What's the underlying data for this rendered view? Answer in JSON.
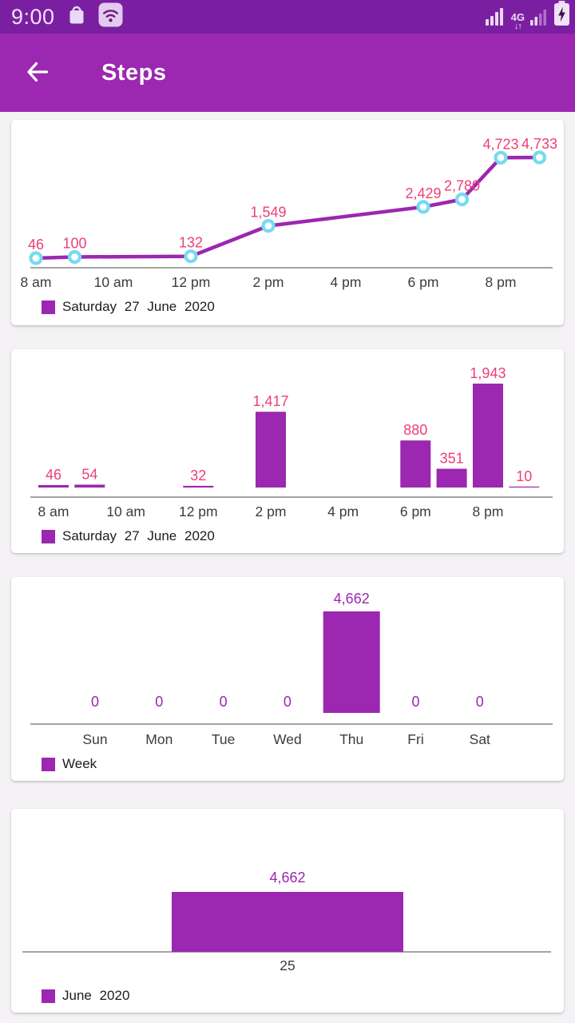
{
  "status_bar": {
    "time": "9:00",
    "network_type": "4G",
    "network_arrows": "↓↑",
    "icons": [
      "bag-icon",
      "wifi-badge-icon",
      "signal-strength-icon",
      "network-4g-icon",
      "signal-strength-2-icon",
      "battery-charging-icon"
    ]
  },
  "app_bar": {
    "title": "Steps",
    "back_icon": "arrow-left"
  },
  "colors": {
    "status_bar_bg": "#7B1FA2",
    "app_bar_bg": "#9C27B0",
    "page_bg": "#F4F2F5",
    "card_bg": "#FFFFFF",
    "series_purple": "#9C27B0",
    "pink_value_label": "#EE3E78",
    "purple_value_label": "#9C27B0",
    "marker_ring": "#76DBEF",
    "axis_line": "#858585",
    "tick_text": "#3C3C3C"
  },
  "chart_data": [
    {
      "type": "line",
      "legend": "Saturday 27 June 2020",
      "x_tick_labels": [
        "8 am",
        "10 am",
        "12 pm",
        "2 pm",
        "4 pm",
        "6 pm",
        "8 pm"
      ],
      "x_tick_hours": [
        8,
        10,
        12,
        14,
        16,
        18,
        20
      ],
      "points": [
        {
          "hour": 8,
          "value": 46,
          "label": "46"
        },
        {
          "hour": 9,
          "value": 100,
          "label": "100"
        },
        {
          "hour": 12,
          "value": 132,
          "label": "132"
        },
        {
          "hour": 14,
          "value": 1549,
          "label": "1,549"
        },
        {
          "hour": 18,
          "value": 2429,
          "label": "2,429"
        },
        {
          "hour": 19,
          "value": 2780,
          "label": "2,780"
        },
        {
          "hour": 20,
          "value": 4723,
          "label": "4,723"
        },
        {
          "hour": 21,
          "value": 4733,
          "label": "4,733"
        }
      ],
      "line_color": "#9C27B0",
      "marker_ring_color": "#76DBEF",
      "marker_fill": "#FFFFFF",
      "value_label_color": "#EE3E78"
    },
    {
      "type": "bar",
      "legend": "Saturday 27 June 2020",
      "x_tick_labels": [
        "8 am",
        "10 am",
        "12 pm",
        "2 pm",
        "4 pm",
        "6 pm",
        "8 pm"
      ],
      "x_tick_hours": [
        8,
        10,
        12,
        14,
        16,
        18,
        20
      ],
      "bars": [
        {
          "hour": 8,
          "value": 46,
          "label": "46"
        },
        {
          "hour": 9,
          "value": 54,
          "label": "54"
        },
        {
          "hour": 12,
          "value": 32,
          "label": "32"
        },
        {
          "hour": 14,
          "value": 1417,
          "label": "1,417"
        },
        {
          "hour": 18,
          "value": 880,
          "label": "880"
        },
        {
          "hour": 19,
          "value": 351,
          "label": "351"
        },
        {
          "hour": 20,
          "value": 1943,
          "label": "1,943"
        },
        {
          "hour": 21,
          "value": 10,
          "label": "10"
        }
      ],
      "bar_color": "#9C27B0",
      "value_label_color": "#EE3E78"
    },
    {
      "type": "bar",
      "legend": "Week",
      "categories": [
        "Sun",
        "Mon",
        "Tue",
        "Wed",
        "Thu",
        "Fri",
        "Sat"
      ],
      "values": [
        0,
        0,
        0,
        0,
        4662,
        0,
        0
      ],
      "value_labels": [
        "0",
        "0",
        "0",
        "0",
        "4,662",
        "0",
        "0"
      ],
      "bar_color": "#9C27B0",
      "value_label_color": "#9C27B0"
    },
    {
      "type": "bar",
      "legend": "June 2020",
      "categories": [
        "25"
      ],
      "values": [
        4662
      ],
      "value_labels": [
        "4,662"
      ],
      "bar_color": "#9C27B0",
      "value_label_color": "#9C27B0"
    }
  ]
}
